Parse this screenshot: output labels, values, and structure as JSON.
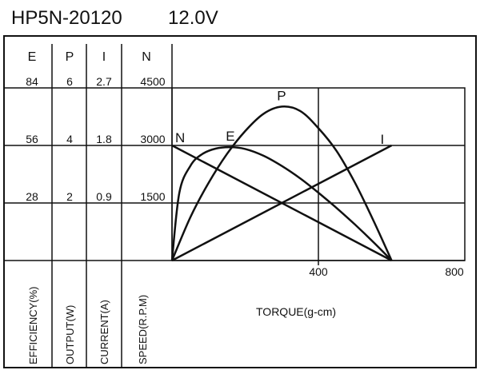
{
  "header": {
    "model": "HP5N-20120",
    "voltage": "12.0V"
  },
  "columns": [
    {
      "head": "E",
      "ticks": [
        "84",
        "56",
        "28"
      ],
      "axis_label": "EFFICIENCY(%)"
    },
    {
      "head": "P",
      "ticks": [
        "6",
        "4",
        "2"
      ],
      "axis_label": "OUTPUT(W)"
    },
    {
      "head": "I",
      "ticks": [
        "2.7",
        "1.8",
        "0.9"
      ],
      "axis_label": "CURRENT(A)"
    },
    {
      "head": "N",
      "ticks": [
        "4500",
        "3000",
        "1500"
      ],
      "axis_label": "SPEED(R.P.M)"
    }
  ],
  "colors": {
    "ink": "#111111",
    "background": "#ffffff"
  },
  "chart_data": {
    "type": "line",
    "title": "HP5N-20120 12.0V",
    "xlabel": "TORQUE(g-cm)",
    "xlim": [
      0,
      800
    ],
    "x_ticks": [
      "400",
      "800"
    ],
    "x_tick_values": [
      400,
      800
    ],
    "grid": true,
    "legend": "curve labels on lines",
    "y_axes": [
      {
        "name": "E",
        "label": "EFFICIENCY(%)",
        "range": [
          0,
          84
        ],
        "ticks": [
          28,
          56,
          84
        ]
      },
      {
        "name": "P",
        "label": "OUTPUT(W)",
        "range": [
          0,
          6
        ],
        "ticks": [
          2,
          4,
          6
        ]
      },
      {
        "name": "I",
        "label": "CURRENT(A)",
        "range": [
          0,
          2.7
        ],
        "ticks": [
          0.9,
          1.8,
          2.7
        ]
      },
      {
        "name": "N",
        "label": "SPEED(R.P.M)",
        "range": [
          0,
          4500
        ],
        "ticks": [
          1500,
          3000,
          4500
        ]
      }
    ],
    "series": [
      {
        "name": "N",
        "axis": "N",
        "x": [
          0,
          600
        ],
        "y": [
          3000,
          0
        ]
      },
      {
        "name": "E",
        "axis": "E",
        "x": [
          0,
          20,
          50,
          80,
          120,
          160,
          200,
          250,
          300,
          350,
          400,
          450,
          500,
          550,
          600
        ],
        "y": [
          0,
          33,
          46,
          51.5,
          54.5,
          55.2,
          54.3,
          51,
          46,
          40,
          33,
          25.5,
          17.5,
          9,
          0
        ]
      },
      {
        "name": "P",
        "axis": "P",
        "x": [
          0,
          50,
          100,
          150,
          200,
          250,
          300,
          350,
          400,
          450,
          500,
          550,
          600
        ],
        "y": [
          0,
          1.5,
          2.7,
          3.7,
          4.5,
          5.1,
          5.35,
          5.2,
          4.6,
          3.8,
          2.7,
          1.4,
          0
        ]
      },
      {
        "name": "I",
        "axis": "I",
        "x": [
          0,
          600
        ],
        "y": [
          0,
          1.8
        ]
      }
    ],
    "curve_labels": [
      {
        "text": "N",
        "series": "N"
      },
      {
        "text": "E",
        "series": "E"
      },
      {
        "text": "P",
        "series": "P"
      },
      {
        "text": "I",
        "series": "I"
      }
    ]
  }
}
